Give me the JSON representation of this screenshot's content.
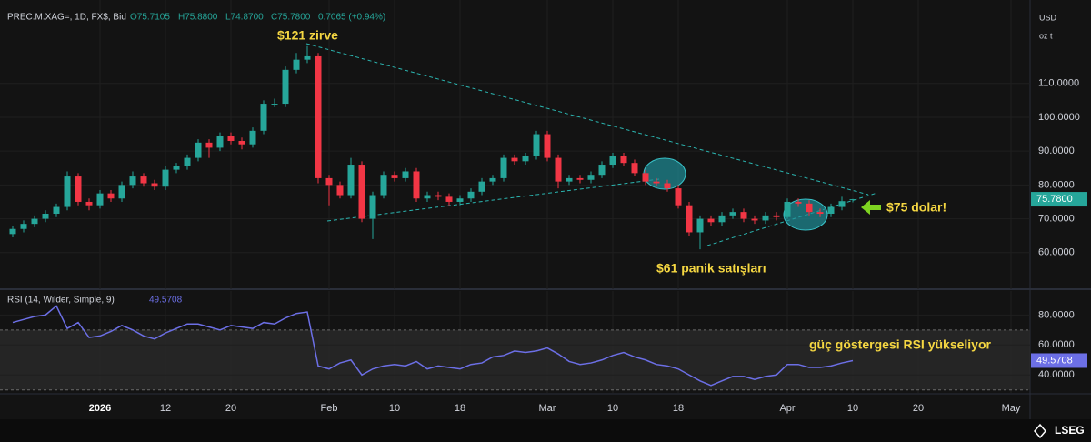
{
  "header": {
    "symbol": "PREC.M.XAG=, 1D, FX$, Bid",
    "ohlc": [
      "O75.7105",
      "H75.8800",
      "L74.8700",
      "C75.7800"
    ],
    "change": "0.7065 (+0.94%)",
    "currency": "USD",
    "unit": "oz t",
    "brand": "LSEG"
  },
  "chart_data": [
    {
      "type": "candlestick",
      "up_color": "#26a69a",
      "down_color": "#f23645",
      "open": [
        65.5,
        67,
        68.5,
        70,
        71.5,
        73.5,
        82.5,
        75,
        74,
        77.5,
        76,
        80,
        82.5,
        80.5,
        79.5,
        84.5,
        85.5,
        88,
        92.5,
        91,
        94.5,
        93,
        92,
        96,
        104,
        104,
        114,
        117,
        118,
        82,
        80,
        77,
        86,
        70,
        77,
        83,
        82,
        84,
        76,
        77,
        76.5,
        75,
        76,
        78,
        81,
        82,
        88,
        87,
        88.5,
        95,
        88,
        81,
        82,
        81.5,
        83,
        86,
        88.5,
        86.5,
        83.5,
        81,
        80.5,
        79,
        74,
        66,
        70,
        69,
        71,
        72,
        70,
        69.5,
        71,
        70.5,
        75,
        74.5,
        72,
        71.5,
        73.5,
        75.7105
      ],
      "high": [
        68,
        69.5,
        71,
        72.5,
        74.5,
        84,
        83.5,
        76,
        78.5,
        78.5,
        81,
        84,
        83.5,
        81.5,
        85.5,
        86.5,
        89,
        93.5,
        93.5,
        95.5,
        95.5,
        94,
        97,
        105,
        105.5,
        115,
        119,
        121,
        119,
        83,
        81,
        88,
        87,
        78,
        84,
        84,
        85,
        85,
        78,
        78,
        77.5,
        77,
        79,
        82,
        83,
        89,
        89,
        89.5,
        96,
        96,
        89,
        83,
        83,
        84,
        87,
        89.5,
        89.5,
        87.5,
        84.5,
        82,
        81.5,
        80,
        75,
        71,
        71,
        72,
        73,
        73,
        71,
        72,
        72,
        76,
        76,
        75.5,
        73,
        74.5,
        76.5,
        75.88
      ],
      "low": [
        64.5,
        66,
        67.5,
        69,
        70.5,
        72.5,
        74,
        72.5,
        73,
        75,
        75,
        79,
        79.5,
        78.5,
        78.5,
        83.5,
        84.5,
        87,
        88,
        90,
        92,
        90.5,
        91,
        95,
        103,
        103,
        113,
        116,
        80.5,
        74,
        76,
        76,
        69,
        64,
        76,
        81,
        81,
        75,
        75,
        75.5,
        74,
        74,
        75,
        77,
        80,
        81,
        86,
        86,
        87.5,
        87,
        79,
        80,
        80.5,
        80.5,
        82,
        85,
        85.5,
        82.5,
        80,
        79.5,
        78,
        73,
        65,
        61,
        68,
        68,
        70,
        69,
        68.5,
        68.5,
        69.5,
        70,
        73.5,
        71,
        70.5,
        70.5,
        72.5,
        74.87
      ],
      "close": [
        67,
        68.5,
        70,
        71.5,
        73.5,
        82.5,
        75,
        74,
        77.5,
        76,
        80,
        82.5,
        80.5,
        79.5,
        84.5,
        85.5,
        88,
        92.5,
        91,
        94.5,
        93,
        92,
        96,
        104,
        104,
        114,
        117,
        118,
        82,
        80,
        77,
        86,
        70,
        77,
        83,
        82,
        84,
        76,
        77,
        76.5,
        75,
        76,
        78,
        81,
        82,
        88,
        87,
        88.5,
        95,
        88,
        81,
        82,
        81.5,
        83,
        86,
        88.5,
        86.5,
        83.5,
        81,
        80.5,
        79,
        74,
        66,
        70,
        69,
        71,
        72,
        70,
        69.5,
        71,
        70.5,
        75,
        74.5,
        72,
        71.5,
        73.5,
        75.2,
        75.78
      ],
      "close_label": "75.7800",
      "ylim": [
        50,
        132.5
      ],
      "yticks": [
        {
          "value": 60,
          "label": "60.0000"
        },
        {
          "value": 70,
          "label": "70.0000"
        },
        {
          "value": 80,
          "label": "80.0000"
        },
        {
          "value": 90,
          "label": "90.0000"
        },
        {
          "value": 100,
          "label": "100.0000"
        },
        {
          "value": 110,
          "label": "110.0000"
        }
      ],
      "xlim": [
        -1,
        93
      ],
      "xticks": [
        {
          "value": 8,
          "label": "2026"
        },
        {
          "value": 14,
          "label": "12"
        },
        {
          "value": 20,
          "label": "20"
        },
        {
          "value": 29,
          "label": "Feb"
        },
        {
          "value": 35,
          "label": "10"
        },
        {
          "value": 41,
          "label": "18"
        },
        {
          "value": 49,
          "label": "Mar"
        },
        {
          "value": 55,
          "label": "10"
        },
        {
          "value": 61,
          "label": "18"
        },
        {
          "value": 71,
          "label": "Apr"
        },
        {
          "value": 77,
          "label": "10"
        },
        {
          "value": 83,
          "label": "20"
        },
        {
          "value": 91.5,
          "label": "May"
        }
      ],
      "grid": true,
      "annotations": [
        "$121 zirve",
        "$61 panik satışları",
        "$75 dolar!"
      ]
    },
    {
      "type": "line",
      "title": "RSI (14, Wilder, Simple, 9)",
      "color": "#6c6fe6",
      "values": [
        75,
        77,
        79,
        80,
        86,
        71,
        75,
        65,
        66,
        69,
        73,
        70,
        66,
        64,
        68,
        71,
        74,
        74,
        72,
        70,
        73,
        72,
        71,
        75,
        74,
        78,
        81,
        82,
        46,
        44,
        48,
        50,
        40,
        44,
        46,
        47,
        46,
        49,
        44,
        46,
        45,
        44,
        47,
        48,
        52,
        53,
        56,
        55,
        56,
        58,
        54,
        49,
        47,
        48,
        50,
        53,
        55,
        52,
        50,
        47,
        46,
        44,
        40,
        36,
        33,
        36,
        39,
        39,
        37,
        39,
        40,
        47,
        47,
        45,
        45,
        46,
        48,
        49.5708
      ],
      "ylim": [
        28,
        96
      ],
      "yticks": [
        {
          "value": 40,
          "label": "40.0000"
        },
        {
          "value": 60,
          "label": "60.0000"
        },
        {
          "value": 80,
          "label": "80.0000"
        }
      ],
      "band": [
        30,
        70
      ],
      "annotation": "güç göstergesi RSI yükseliyor"
    }
  ]
}
